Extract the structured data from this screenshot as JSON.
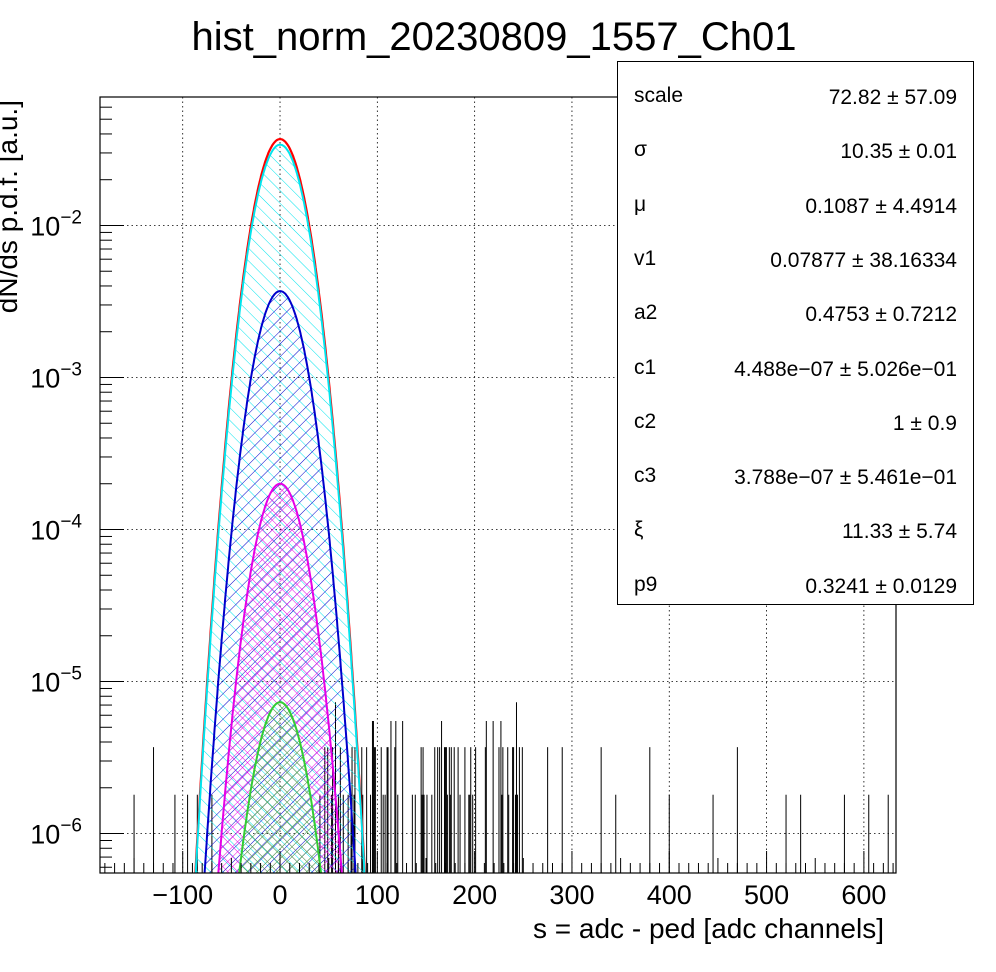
{
  "chart_data": {
    "type": "line",
    "title": "hist_norm_20230809_1557_Ch01",
    "xlabel": "s = adc - ped [adc channels]",
    "ylabel": "dN/ds p.d.f. [a.u.]",
    "xlim": [
      -185,
      633
    ],
    "ylim": [
      5.5e-07,
      0.07
    ],
    "yscale": "log",
    "grid": true,
    "x_ticks": [
      -100,
      0,
      100,
      200,
      300,
      400,
      500,
      600
    ],
    "x_tick_labels": [
      "−100",
      "0",
      "100",
      "200",
      "300",
      "400",
      "500",
      "600"
    ],
    "y_ticks": [
      1e-06,
      1e-05,
      0.0001,
      0.001,
      0.01
    ],
    "y_tick_labels": [
      {
        "base": "10",
        "exp": "−6"
      },
      {
        "base": "10",
        "exp": "−5"
      },
      {
        "base": "10",
        "exp": "−4"
      },
      {
        "base": "10",
        "exp": "−3"
      },
      {
        "base": "10",
        "exp": "−2"
      }
    ],
    "series": [
      {
        "color": "#ff0000",
        "peak": 0.037,
        "mean": 0.1,
        "sigma": 10.35
      },
      {
        "color": "#00e5ee",
        "peak": 0.034,
        "mean": 0.1,
        "sigma": 10.35
      },
      {
        "color": "#0000cc",
        "peak": 0.0037,
        "mean": 0.1,
        "sigma": 10.35
      },
      {
        "color": "#e600e6",
        "peak": 0.0002,
        "mean": 0.1,
        "sigma": 10.35
      },
      {
        "color": "#33cc33",
        "peak": 7.3e-06,
        "mean": 0.1,
        "sigma": 10.35
      }
    ],
    "histogram_tail": {
      "x_range": [
        40,
        250
      ],
      "sparse_x": [
        -150,
        -130,
        -108,
        -95,
        -85,
        -70,
        275,
        290,
        330,
        345,
        380,
        400,
        445,
        470,
        520,
        535,
        580,
        605,
        625
      ],
      "levels": [
        1.8e-06,
        3.7e-06,
        5.5e-06,
        7.3e-06,
        1.1e-05
      ]
    }
  },
  "stats": [
    {
      "name": "scale",
      "value": "72.82 ± 57.09"
    },
    {
      "name": "σ",
      "value": "10.35 ± 0.01"
    },
    {
      "name": "μ",
      "value": "0.1087 ± 4.4914"
    },
    {
      "name": "v1",
      "value": "0.07877 ± 38.16334"
    },
    {
      "name": "a2",
      "value": "0.4753 ± 0.7212"
    },
    {
      "name": "c1",
      "value": "4.488e−07 ± 5.026e−01"
    },
    {
      "name": "c2",
      "value": "1 ± 0.9"
    },
    {
      "name": "c3",
      "value": "3.788e−07 ± 5.461e−01"
    },
    {
      "name": "ξ",
      "value": "11.33 ± 5.74"
    },
    {
      "name": "p9",
      "value": "0.3241 ± 0.0129"
    }
  ]
}
